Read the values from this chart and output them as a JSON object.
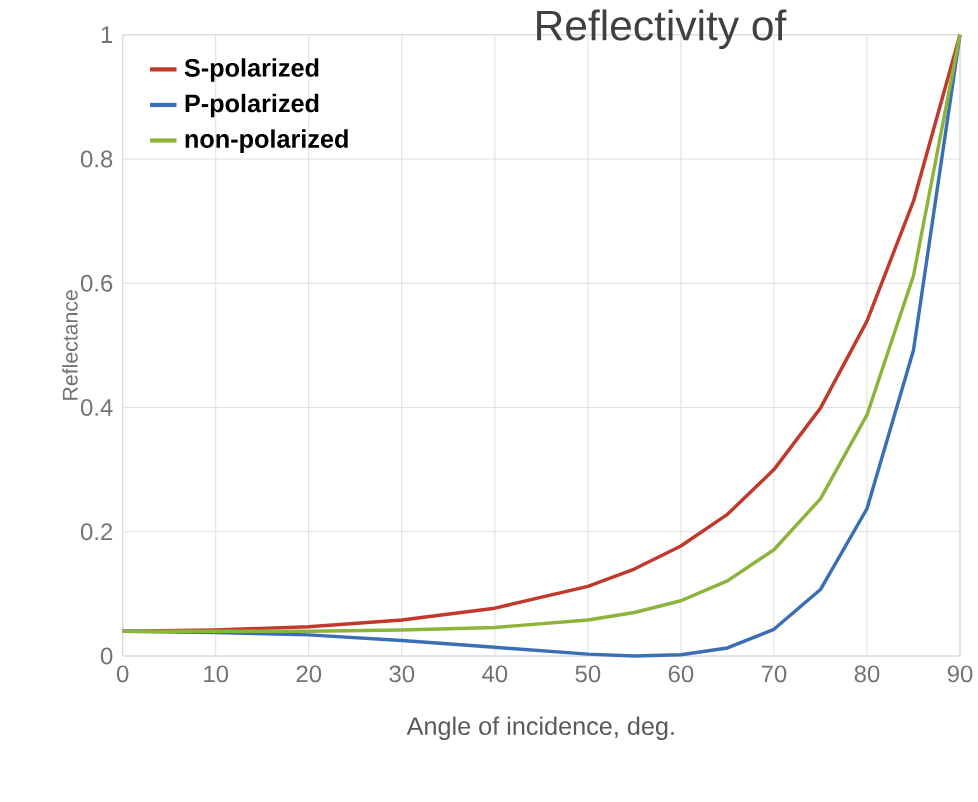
{
  "chart_data": {
    "type": "line",
    "title": "Reflectivity of",
    "xlabel": "Angle of incidence, deg.",
    "ylabel": "Reflectance",
    "x": [
      0,
      10,
      20,
      30,
      40,
      50,
      55,
      60,
      65,
      70,
      75,
      80,
      85,
      90
    ],
    "series": [
      {
        "name": "S-polarized",
        "color": "#c0392b",
        "values": [
          0.04,
          0.042,
          0.047,
          0.058,
          0.077,
          0.112,
          0.14,
          0.177,
          0.228,
          0.3,
          0.399,
          0.539,
          0.732,
          1
        ]
      },
      {
        "name": "P-polarized",
        "color": "#3a6fb5",
        "values": [
          0.04,
          0.038,
          0.034,
          0.025,
          0.014,
          0.003,
          0.0,
          0.002,
          0.013,
          0.043,
          0.107,
          0.237,
          0.492,
          1
        ]
      },
      {
        "name": "non-polarized",
        "color": "#8cb33c",
        "values": [
          0.04,
          0.04,
          0.04,
          0.042,
          0.046,
          0.058,
          0.07,
          0.089,
          0.121,
          0.171,
          0.253,
          0.388,
          0.612,
          1
        ]
      }
    ],
    "xlim": [
      0,
      90
    ],
    "ylim": [
      0,
      1
    ],
    "xticks": [
      0,
      10,
      20,
      30,
      40,
      50,
      60,
      70,
      80,
      90
    ],
    "yticks": [
      0,
      0.2,
      0.4,
      0.6,
      0.8,
      1
    ],
    "grid": true,
    "legend": "top left",
    "marker": "none",
    "line_style": "solid"
  }
}
